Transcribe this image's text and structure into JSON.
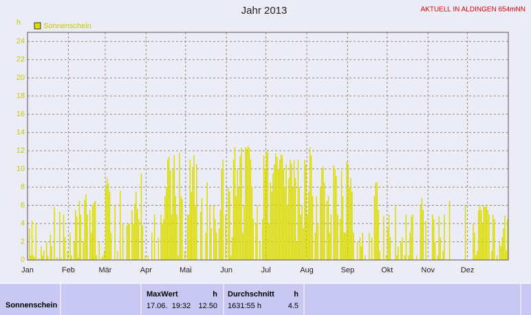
{
  "chart_data": {
    "type": "bar",
    "title": "Jahr 2013",
    "note": "AKTUELL IN ALDINGEN 654mNN",
    "y_label": "h",
    "series": [
      {
        "name": "Sonnenschein",
        "color": "#dcdc00",
        "values": [
          0,
          3.5,
          0.5,
          4.3,
          0.5,
          0.3,
          4,
          0,
          0.2,
          0,
          1.5,
          0.5,
          1,
          0,
          2,
          0.5,
          0,
          2.8,
          1.5,
          0,
          5.8,
          0,
          0.3,
          0,
          5.3,
          0.2,
          0,
          5,
          2.5,
          0,
          1,
          0,
          3,
          0.5,
          0,
          2,
          5.5,
          4.8,
          0.3,
          6.5,
          5,
          0,
          2,
          6.6,
          7.2,
          5,
          0,
          5.5,
          3,
          6,
          6.3,
          6.5,
          0.5,
          0,
          2,
          0,
          0.3,
          0.5,
          1,
          8,
          9,
          8.4,
          7.5,
          3,
          0,
          0,
          6,
          0,
          1,
          0,
          7.6,
          0,
          4,
          0,
          0,
          3.8,
          4,
          4,
          0,
          5.5,
          4,
          6.2,
          7.5,
          5.6,
          4.5,
          0,
          9.5,
          3.8,
          0,
          0.5,
          0,
          0.5,
          0,
          0,
          3,
          0,
          5,
          0,
          0,
          2.5,
          0,
          5,
          4,
          4.5,
          7,
          8,
          11,
          11.3,
          9.8,
          5,
          10,
          11.5,
          7,
          5,
          0.5,
          11.8,
          7,
          6.7,
          0,
          1,
          0,
          5,
          5,
          11,
          7.5,
          10.2,
          11.5,
          6,
          10.5,
          0,
          0,
          5.3,
          6.8,
          0,
          0,
          3,
          8.5,
          0,
          6,
          3.5,
          0,
          6,
          4.5,
          3,
          0,
          3.5,
          5.5,
          10,
          11,
          0,
          5,
          0,
          8,
          7.5,
          0.5,
          2.5,
          11,
          12.4,
          7,
          10,
          8,
          11.4,
          12.3,
          3,
          6,
          12.4,
          12.2,
          12.5,
          12.3,
          11,
          8,
          4.5,
          0,
          4,
          6,
          0,
          2,
          0,
          4.5,
          11.5,
          10,
          12,
          11.8,
          4,
          8.5,
          7.5,
          9.5,
          10.5,
          11.7,
          11.3,
          10,
          11,
          11.6,
          11.5,
          10,
          8,
          10.5,
          6,
          9,
          11,
          10.6,
          8,
          11,
          9,
          2,
          11,
          8,
          5,
          6,
          3.5,
          11,
          10.5,
          5,
          7.5,
          12.4,
          11.5,
          7,
          0,
          3,
          7,
          4,
          0,
          8,
          10,
          10.3,
          8.5,
          0,
          6.5,
          7,
          3,
          5,
          0,
          10.4,
          10,
          9.2,
          5,
          0,
          4.5,
          9.8,
          7,
          3,
          3,
          10.8,
          10.5,
          8,
          9,
          7.5,
          3,
          0,
          0,
          2,
          0,
          2.5,
          1.5,
          3,
          0,
          0.5,
          0,
          0,
          3,
          0,
          2.5,
          0,
          7,
          8.5,
          8.5,
          5.5,
          1,
          0,
          0,
          4.8,
          0,
          0.5,
          3.5,
          5,
          2.5,
          0,
          0,
          0,
          6,
          0.5,
          1.5,
          0,
          2,
          2.5,
          0,
          0.5,
          5,
          0,
          0.5,
          3,
          4.8,
          5,
          0,
          0,
          0.5,
          0,
          0,
          6,
          6.8,
          5.5,
          0,
          4.3,
          0,
          0,
          0,
          0,
          5,
          4.5,
          2,
          0,
          0.5,
          4.8,
          2.5,
          0,
          1,
          5,
          0,
          0,
          0,
          6.5,
          0,
          0,
          0,
          0,
          0,
          0,
          0,
          0,
          0,
          0,
          0,
          6,
          0,
          0,
          0,
          0,
          0,
          4,
          3,
          0.5,
          1,
          5.5,
          6,
          5.5,
          4,
          6,
          5.8,
          6,
          5.5,
          5,
          0,
          1,
          5,
          4.5,
          0,
          0.5,
          0,
          2,
          1.5,
          2.5,
          3.5,
          4.9,
          1,
          4.5
        ]
      }
    ],
    "xlim": [
      0,
      365
    ],
    "xticks": [
      {
        "value": 0,
        "label": "Jan"
      },
      {
        "value": 31,
        "label": "Feb"
      },
      {
        "value": 59,
        "label": "Mär"
      },
      {
        "value": 90,
        "label": "Apr"
      },
      {
        "value": 120,
        "label": "Mai"
      },
      {
        "value": 151,
        "label": "Jun"
      },
      {
        "value": 181,
        "label": "Jul"
      },
      {
        "value": 212,
        "label": "Aug"
      },
      {
        "value": 243,
        "label": "Sep"
      },
      {
        "value": 273,
        "label": "Okt"
      },
      {
        "value": 304,
        "label": "Nov"
      },
      {
        "value": 334,
        "label": "Dez"
      }
    ],
    "ylim": [
      0,
      25
    ],
    "yticks": [
      0,
      2,
      4,
      6,
      8,
      10,
      12,
      14,
      16,
      18,
      20,
      22,
      24
    ],
    "grid": true
  },
  "table": {
    "row_label": "Sonnenschein",
    "max": {
      "header": "MaxWert",
      "unit": "h",
      "time": "17.06.  19:32",
      "value": "12.50"
    },
    "avg": {
      "header": "Durchschnitt",
      "unit": "h",
      "total": "1631:55 h",
      "value": "4.5"
    }
  }
}
